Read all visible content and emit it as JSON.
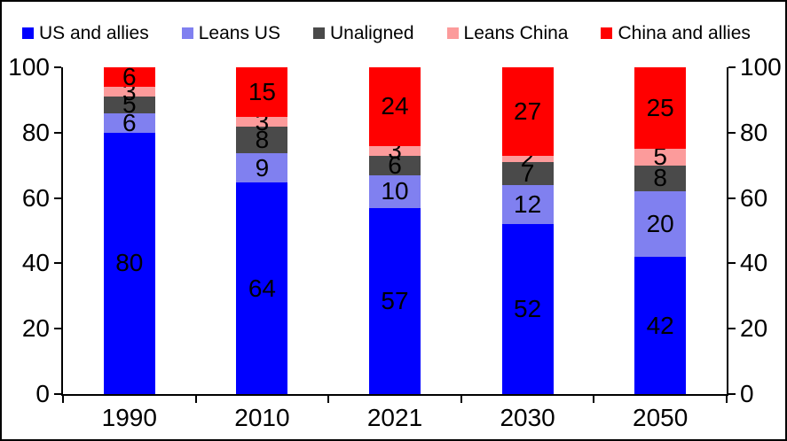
{
  "chart_data": {
    "type": "bar",
    "stacked": true,
    "percent_stacked": true,
    "title": "",
    "xlabel": "",
    "ylabel": "",
    "categories": [
      "1990",
      "2010",
      "2021",
      "2030",
      "2050"
    ],
    "series": [
      {
        "name": "US and allies",
        "color": "#0000FF",
        "values": [
          80,
          64,
          57,
          52,
          42
        ]
      },
      {
        "name": "Leans US",
        "color": "#8080F0",
        "values": [
          6,
          9,
          10,
          12,
          20
        ]
      },
      {
        "name": "Unaligned",
        "color": "#4A4A4A",
        "values": [
          5,
          8,
          6,
          7,
          8
        ]
      },
      {
        "name": "Leans China",
        "color": "#FC9B9B",
        "values": [
          3,
          3,
          3,
          2,
          5
        ]
      },
      {
        "name": "China and allies",
        "color": "#FF0000",
        "values": [
          6,
          15,
          24,
          27,
          25
        ]
      }
    ],
    "y_ticks_left": [
      "0",
      "20",
      "40",
      "60",
      "80",
      "100"
    ],
    "y_ticks_right": [
      "0",
      "20",
      "40",
      "60",
      "80",
      "100"
    ],
    "ylim": [
      0,
      100
    ],
    "grid": false,
    "legend_position": "top",
    "axes": {
      "left": true,
      "right": true,
      "bottom": true
    },
    "data_labels": "inside-center",
    "colors": {
      "text": "#000000",
      "axis": "#000000",
      "background": "#FFFFFF"
    }
  }
}
